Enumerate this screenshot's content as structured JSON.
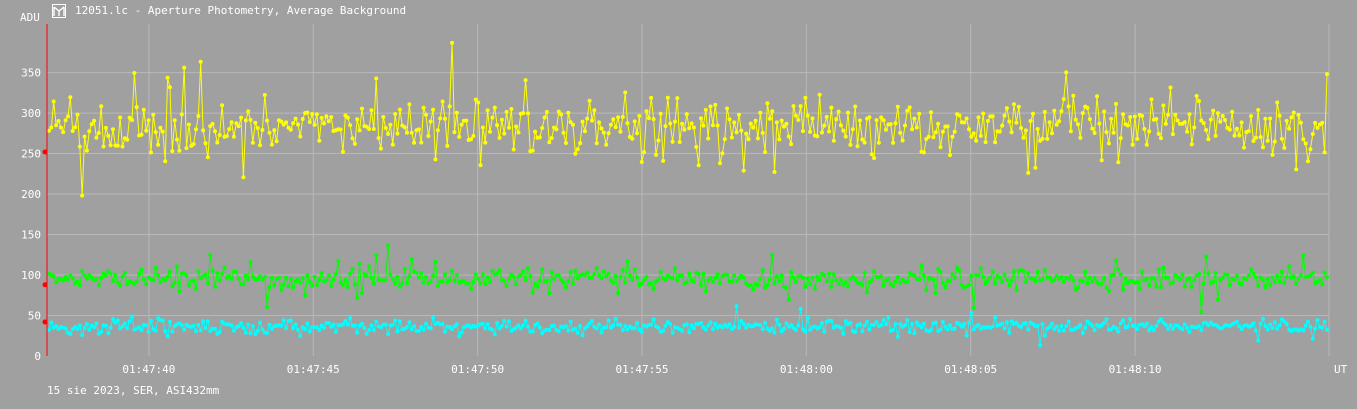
{
  "window": {
    "title": "12051.lc - Aperture Photometry, Average Background",
    "icon": "app-logo-icon"
  },
  "footer": "15 sie 2023, SER, ASI432mm",
  "colors": {
    "background": "#a0a0a0",
    "grid": "#b8b8b8",
    "axis": "#ff0000",
    "series_top": "#ffff00",
    "series_mid": "#00ff00",
    "series_low": "#00ffff"
  },
  "chart_data": {
    "type": "line",
    "ylabel": "ADU",
    "xlabel": "UT",
    "ylim": [
      0,
      410
    ],
    "yticks": [
      0,
      50,
      100,
      150,
      200,
      250,
      300,
      350
    ],
    "xticks": [
      "01:47:40",
      "01:47:45",
      "01:47:50",
      "01:47:55",
      "01:48:00",
      "01:48:05",
      "01:48:10"
    ],
    "xlim_seconds_relative": [
      -3.1,
      35.9
    ],
    "grid": true,
    "markers": "dots",
    "series": [
      {
        "color": "#ffff00",
        "mean": 282,
        "spread": 28,
        "points": 540,
        "start_marker": 252
      },
      {
        "color": "#00ff00",
        "mean": 95,
        "spread": 10,
        "points": 540,
        "start_marker": 88
      },
      {
        "color": "#00ffff",
        "mean": 36,
        "spread": 7,
        "points": 540,
        "start_marker": 42
      }
    ]
  }
}
